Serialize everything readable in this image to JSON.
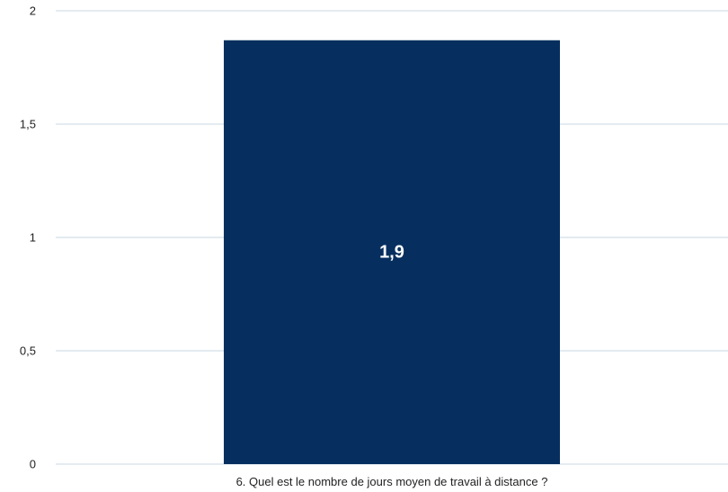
{
  "chart_data": {
    "type": "bar",
    "categories": [
      "6. Quel est le nombre de jours moyen de travail à distance ?"
    ],
    "values": [
      1.87
    ],
    "data_labels": [
      "1,9"
    ],
    "ylim": [
      0,
      2
    ],
    "yticks": [
      0,
      0.5,
      1,
      1.5,
      2
    ],
    "ytick_labels": [
      "0",
      "0,5",
      "1",
      "1,5",
      "2"
    ],
    "grid": true,
    "legend": "none",
    "title": "",
    "xlabel": "",
    "ylabel": "",
    "colors": {
      "bar": "#062f5f",
      "grid": "#c9d7e3",
      "text": "#222222",
      "label": "#ffffff"
    }
  }
}
